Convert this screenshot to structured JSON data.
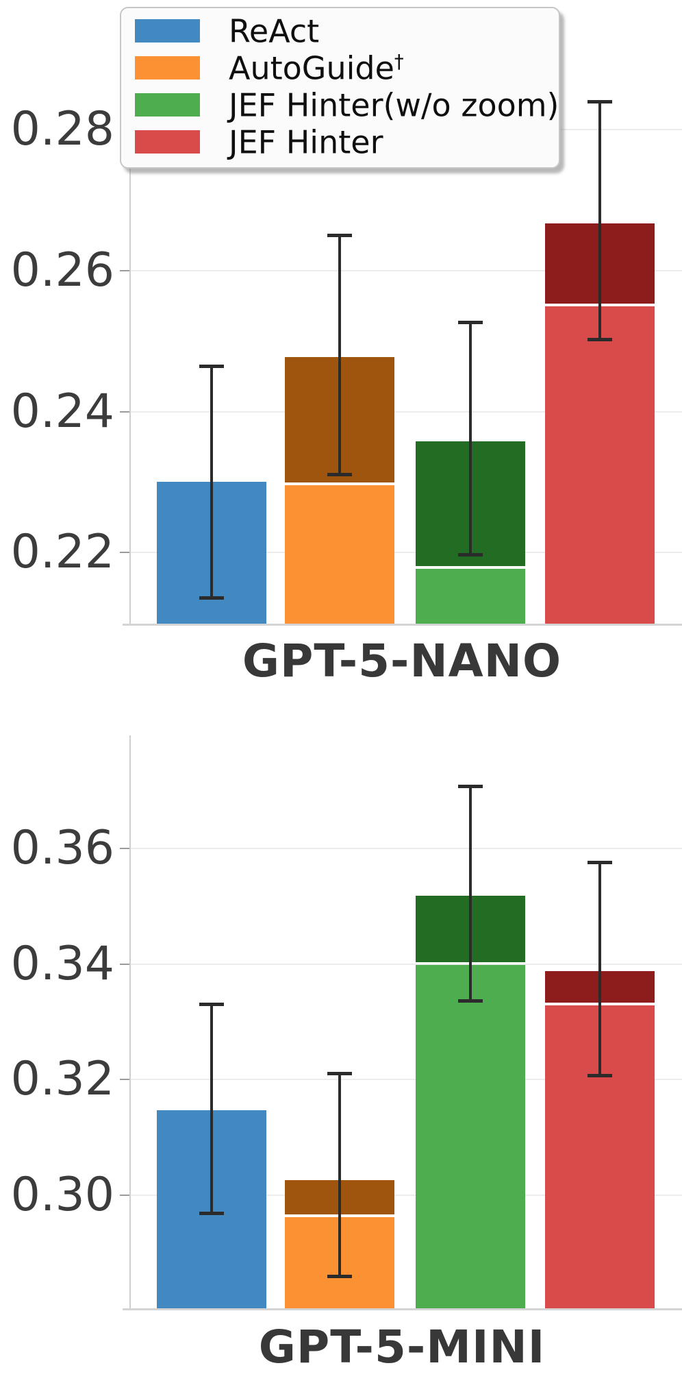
{
  "figure": {
    "panels": [
      "GPT-5-NANO",
      "GPT-5-MINI"
    ]
  },
  "legend": {
    "items": [
      {
        "label": "ReAct",
        "sup": "",
        "color": "#4189c0"
      },
      {
        "label": "AutoGuide",
        "sup": "†",
        "color": "#fc9133"
      },
      {
        "label": "JEF Hinter(w/o zoom)",
        "sup": "",
        "color": "#4ead4f"
      },
      {
        "label": "JEF Hinter",
        "sup": "",
        "color": "#d94a4a"
      }
    ]
  },
  "chart_data": [
    {
      "type": "bar",
      "title": "GPT-5-NANO",
      "xlabel": "",
      "ylabel": "",
      "grid": true,
      "legend_position": "upper left",
      "yticks": [
        0.22,
        0.24,
        0.26,
        0.28
      ],
      "ylim": [
        0.2099,
        0.2916
      ],
      "categories": [
        "ReAct",
        "AutoGuide†",
        "JEF Hinter(w/o zoom)",
        "JEF Hinter"
      ],
      "series": [
        {
          "name": "ReAct",
          "light_top": 0.23,
          "total": 0.23,
          "err_lo": 0.2135,
          "err_hi": 0.2465,
          "color": "#4189c0",
          "color_dark": null
        },
        {
          "name": "AutoGuide†",
          "light_top": 0.2295,
          "total": 0.2477,
          "err_lo": 0.231,
          "err_hi": 0.265,
          "color": "#fc9133",
          "color_dark": "#9f550e"
        },
        {
          "name": "JEF Hinter(w/o zoom)",
          "light_top": 0.2177,
          "total": 0.2358,
          "err_lo": 0.2196,
          "err_hi": 0.2527,
          "color": "#4ead4f",
          "color_dark": "#236c23"
        },
        {
          "name": "JEF Hinter",
          "light_top": 0.2549,
          "total": 0.2667,
          "err_lo": 0.2502,
          "err_hi": 0.284,
          "color": "#d94a4a",
          "color_dark": "#8d1d1d"
        }
      ]
    },
    {
      "type": "bar",
      "title": "GPT-5-MINI",
      "xlabel": "",
      "ylabel": "",
      "grid": true,
      "legend_position": "none",
      "yticks": [
        0.3,
        0.32,
        0.34,
        0.36
      ],
      "ylim": [
        0.2805,
        0.3795
      ],
      "categories": [
        "ReAct",
        "AutoGuide†",
        "JEF Hinter(w/o zoom)",
        "JEF Hinter"
      ],
      "series": [
        {
          "name": "ReAct",
          "light_top": 0.3147,
          "total": 0.3147,
          "err_lo": 0.2968,
          "err_hi": 0.3331,
          "color": "#4189c0",
          "color_dark": null
        },
        {
          "name": "AutoGuide†",
          "light_top": 0.2962,
          "total": 0.3026,
          "err_lo": 0.286,
          "err_hi": 0.3211,
          "color": "#fc9133",
          "color_dark": "#9f550e"
        },
        {
          "name": "JEF Hinter(w/o zoom)",
          "light_top": 0.3398,
          "total": 0.3518,
          "err_lo": 0.3335,
          "err_hi": 0.3707,
          "color": "#4ead4f",
          "color_dark": "#236c23"
        },
        {
          "name": "JEF Hinter",
          "light_top": 0.3328,
          "total": 0.3388,
          "err_lo": 0.3206,
          "err_hi": 0.3576,
          "color": "#d94a4a",
          "color_dark": "#8d1d1d"
        }
      ]
    }
  ]
}
